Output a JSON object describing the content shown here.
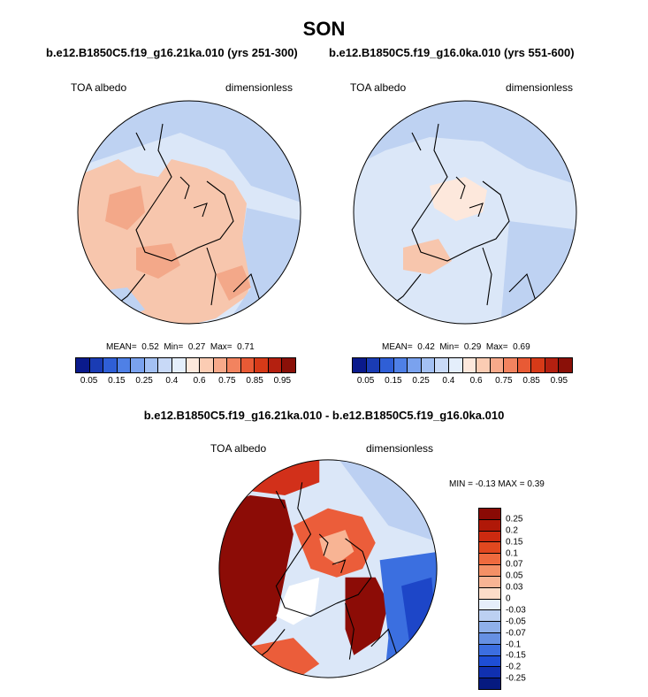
{
  "title": "SON",
  "panels": [
    {
      "name": "panel-21ka",
      "title": "b.e12.B1850C5.f19_g16.21ka.010 (yrs 251-300)",
      "left_label": "TOA albedo",
      "right_label": "dimensionless",
      "mean_label": "MEAN=",
      "mean": "0.52",
      "min_label": "Min=",
      "min": "0.27",
      "max_label": "Max=",
      "max": "0.71"
    },
    {
      "name": "panel-0ka",
      "title": "b.e12.B1850C5.f19_g16.0ka.010 (yrs 551-600)",
      "left_label": "TOA albedo",
      "right_label": "dimensionless",
      "mean_label": "MEAN=",
      "mean": "0.42",
      "min_label": "Min=",
      "min": "0.29",
      "max_label": "Max=",
      "max": "0.69"
    }
  ],
  "albedo_colorbar": {
    "tick_labels": [
      "0.05",
      "0.15",
      "0.25",
      "0.4",
      "0.6",
      "0.75",
      "0.85",
      "0.95"
    ],
    "colors": [
      "#0a1a8c",
      "#1a3cb4",
      "#2f5fd6",
      "#4f80e6",
      "#7aa2ee",
      "#a3c0f3",
      "#c8d9f7",
      "#e4eefb",
      "#fde8dc",
      "#fbccb3",
      "#f7a98a",
      "#f2835f",
      "#e85a35",
      "#d63a18",
      "#b42010",
      "#8a1008"
    ]
  },
  "difference": {
    "title": "b.e12.B1850C5.f19_g16.21ka.010 - b.e12.B1850C5.f19_g16.0ka.010",
    "left_label": "TOA albedo",
    "right_label": "dimensionless",
    "minmax_text": "MIN = -0.13 MAX = 0.39",
    "colorbar": {
      "tick_labels": [
        "0.25",
        "0.2",
        "0.15",
        "0.1",
        "0.07",
        "0.05",
        "0.03",
        "0",
        "-0.03",
        "-0.05",
        "-0.07",
        "-0.1",
        "-0.15",
        "-0.2",
        "-0.25"
      ],
      "colors": [
        "#8a0a05",
        "#b01808",
        "#cc2a10",
        "#e2481f",
        "#ef6a3e",
        "#f49066",
        "#f8b494",
        "#fcdcc8",
        "#e6eefa",
        "#bcd0f2",
        "#8fb0ea",
        "#6690e3",
        "#3c6ee0",
        "#1e4ed6",
        "#1030b0",
        "#061a80"
      ]
    }
  },
  "map_colors": {
    "ocean_light": "#dbe7f8",
    "ocean_mid": "#bed2f2",
    "ocean_blue": "#9cbcee",
    "land_salmon": "#f7c6ad",
    "land_orange": "#f3a889",
    "land_pale": "#fde8dc",
    "dark_red": "#8c0c06",
    "red": "#d2301a",
    "orange_red": "#eb5d3a",
    "pale_white": "#ffffff",
    "blue": "#3b6fe0",
    "deep_blue": "#1d46c8"
  }
}
